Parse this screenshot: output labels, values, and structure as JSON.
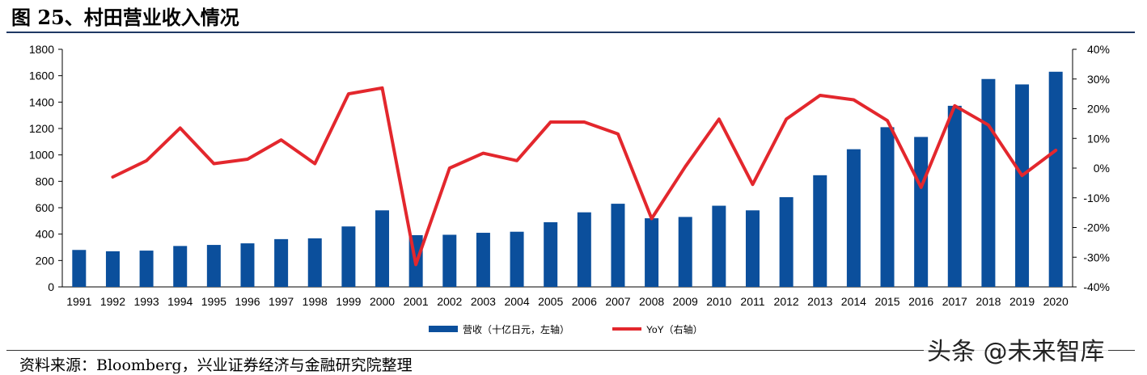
{
  "figure": {
    "title": "图 25、村田营业收入情况",
    "source": "资料来源：Bloomberg，兴业证券经济与金融研究院整理",
    "watermark": "头条 @未来智库"
  },
  "chart_data": {
    "type": "bar",
    "title": "村田营业收入情况",
    "categories": [
      "1991",
      "1992",
      "1993",
      "1994",
      "1995",
      "1996",
      "1997",
      "1998",
      "1999",
      "2000",
      "2001",
      "2002",
      "2003",
      "2004",
      "2005",
      "2006",
      "2007",
      "2008",
      "2009",
      "2010",
      "2011",
      "2012",
      "2013",
      "2014",
      "2015",
      "2016",
      "2017",
      "2018",
      "2019",
      "2020"
    ],
    "series": [
      {
        "name": "营收（十亿日元，左轴）",
        "type": "bar",
        "axis": "left",
        "color": "#0b4f9c",
        "values": [
          280,
          270,
          275,
          310,
          318,
          330,
          362,
          368,
          458,
          580,
          392,
          395,
          410,
          418,
          490,
          565,
          630,
          520,
          530,
          615,
          580,
          680,
          846,
          1043,
          1210,
          1136,
          1372,
          1575,
          1534,
          1630
        ]
      },
      {
        "name": "YoY（右轴）",
        "type": "line",
        "axis": "right",
        "color": "#e3272d",
        "values": [
          null,
          -3,
          2.5,
          13.5,
          1.5,
          3,
          9.5,
          1.5,
          25,
          27,
          -32.5,
          0,
          5,
          2.5,
          15.5,
          15.5,
          11.5,
          -17,
          0.5,
          16.5,
          -5.5,
          16.5,
          24.5,
          23,
          16,
          -6.5,
          21,
          14.5,
          -2.5,
          6
        ]
      }
    ],
    "y_left": {
      "min": 0,
      "max": 1800,
      "ticks": [
        "0",
        "200",
        "400",
        "600",
        "800",
        "1000",
        "1200",
        "1400",
        "1600",
        "1800"
      ]
    },
    "y_right": {
      "min": -40,
      "max": 40,
      "ticks": [
        "-40%",
        "-30%",
        "-20%",
        "-10%",
        "0%",
        "10%",
        "20%",
        "30%",
        "40%"
      ]
    },
    "legend": {
      "position": "bottom",
      "labels": [
        "营收（十亿日元，左轴）",
        "YoY（右轴）"
      ]
    },
    "grid": false
  }
}
